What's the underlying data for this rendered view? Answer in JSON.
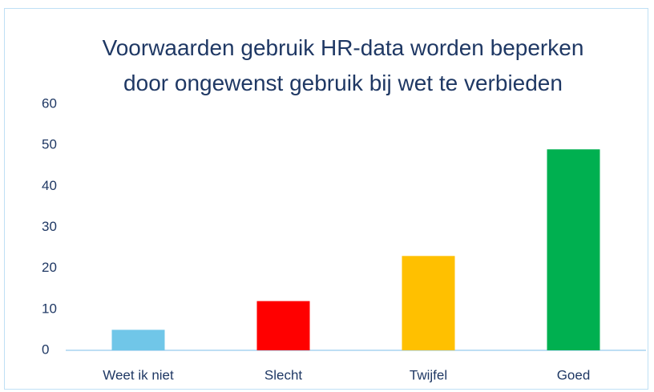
{
  "chart_data": {
    "type": "bar",
    "title": "Voorwaarden gebruik HR-data worden beperken door ongewenst gebruik bij wet te verbieden",
    "categories": [
      "Weet ik niet",
      "Slecht",
      "Twijfel",
      "Goed"
    ],
    "values": [
      5,
      12,
      23,
      49
    ],
    "colors": [
      "#70c6e8",
      "#ff0000",
      "#ffc000",
      "#00b050"
    ],
    "ylim": [
      0,
      60
    ],
    "yticks": [
      0,
      10,
      20,
      30,
      40,
      50,
      60
    ],
    "grid": false
  }
}
